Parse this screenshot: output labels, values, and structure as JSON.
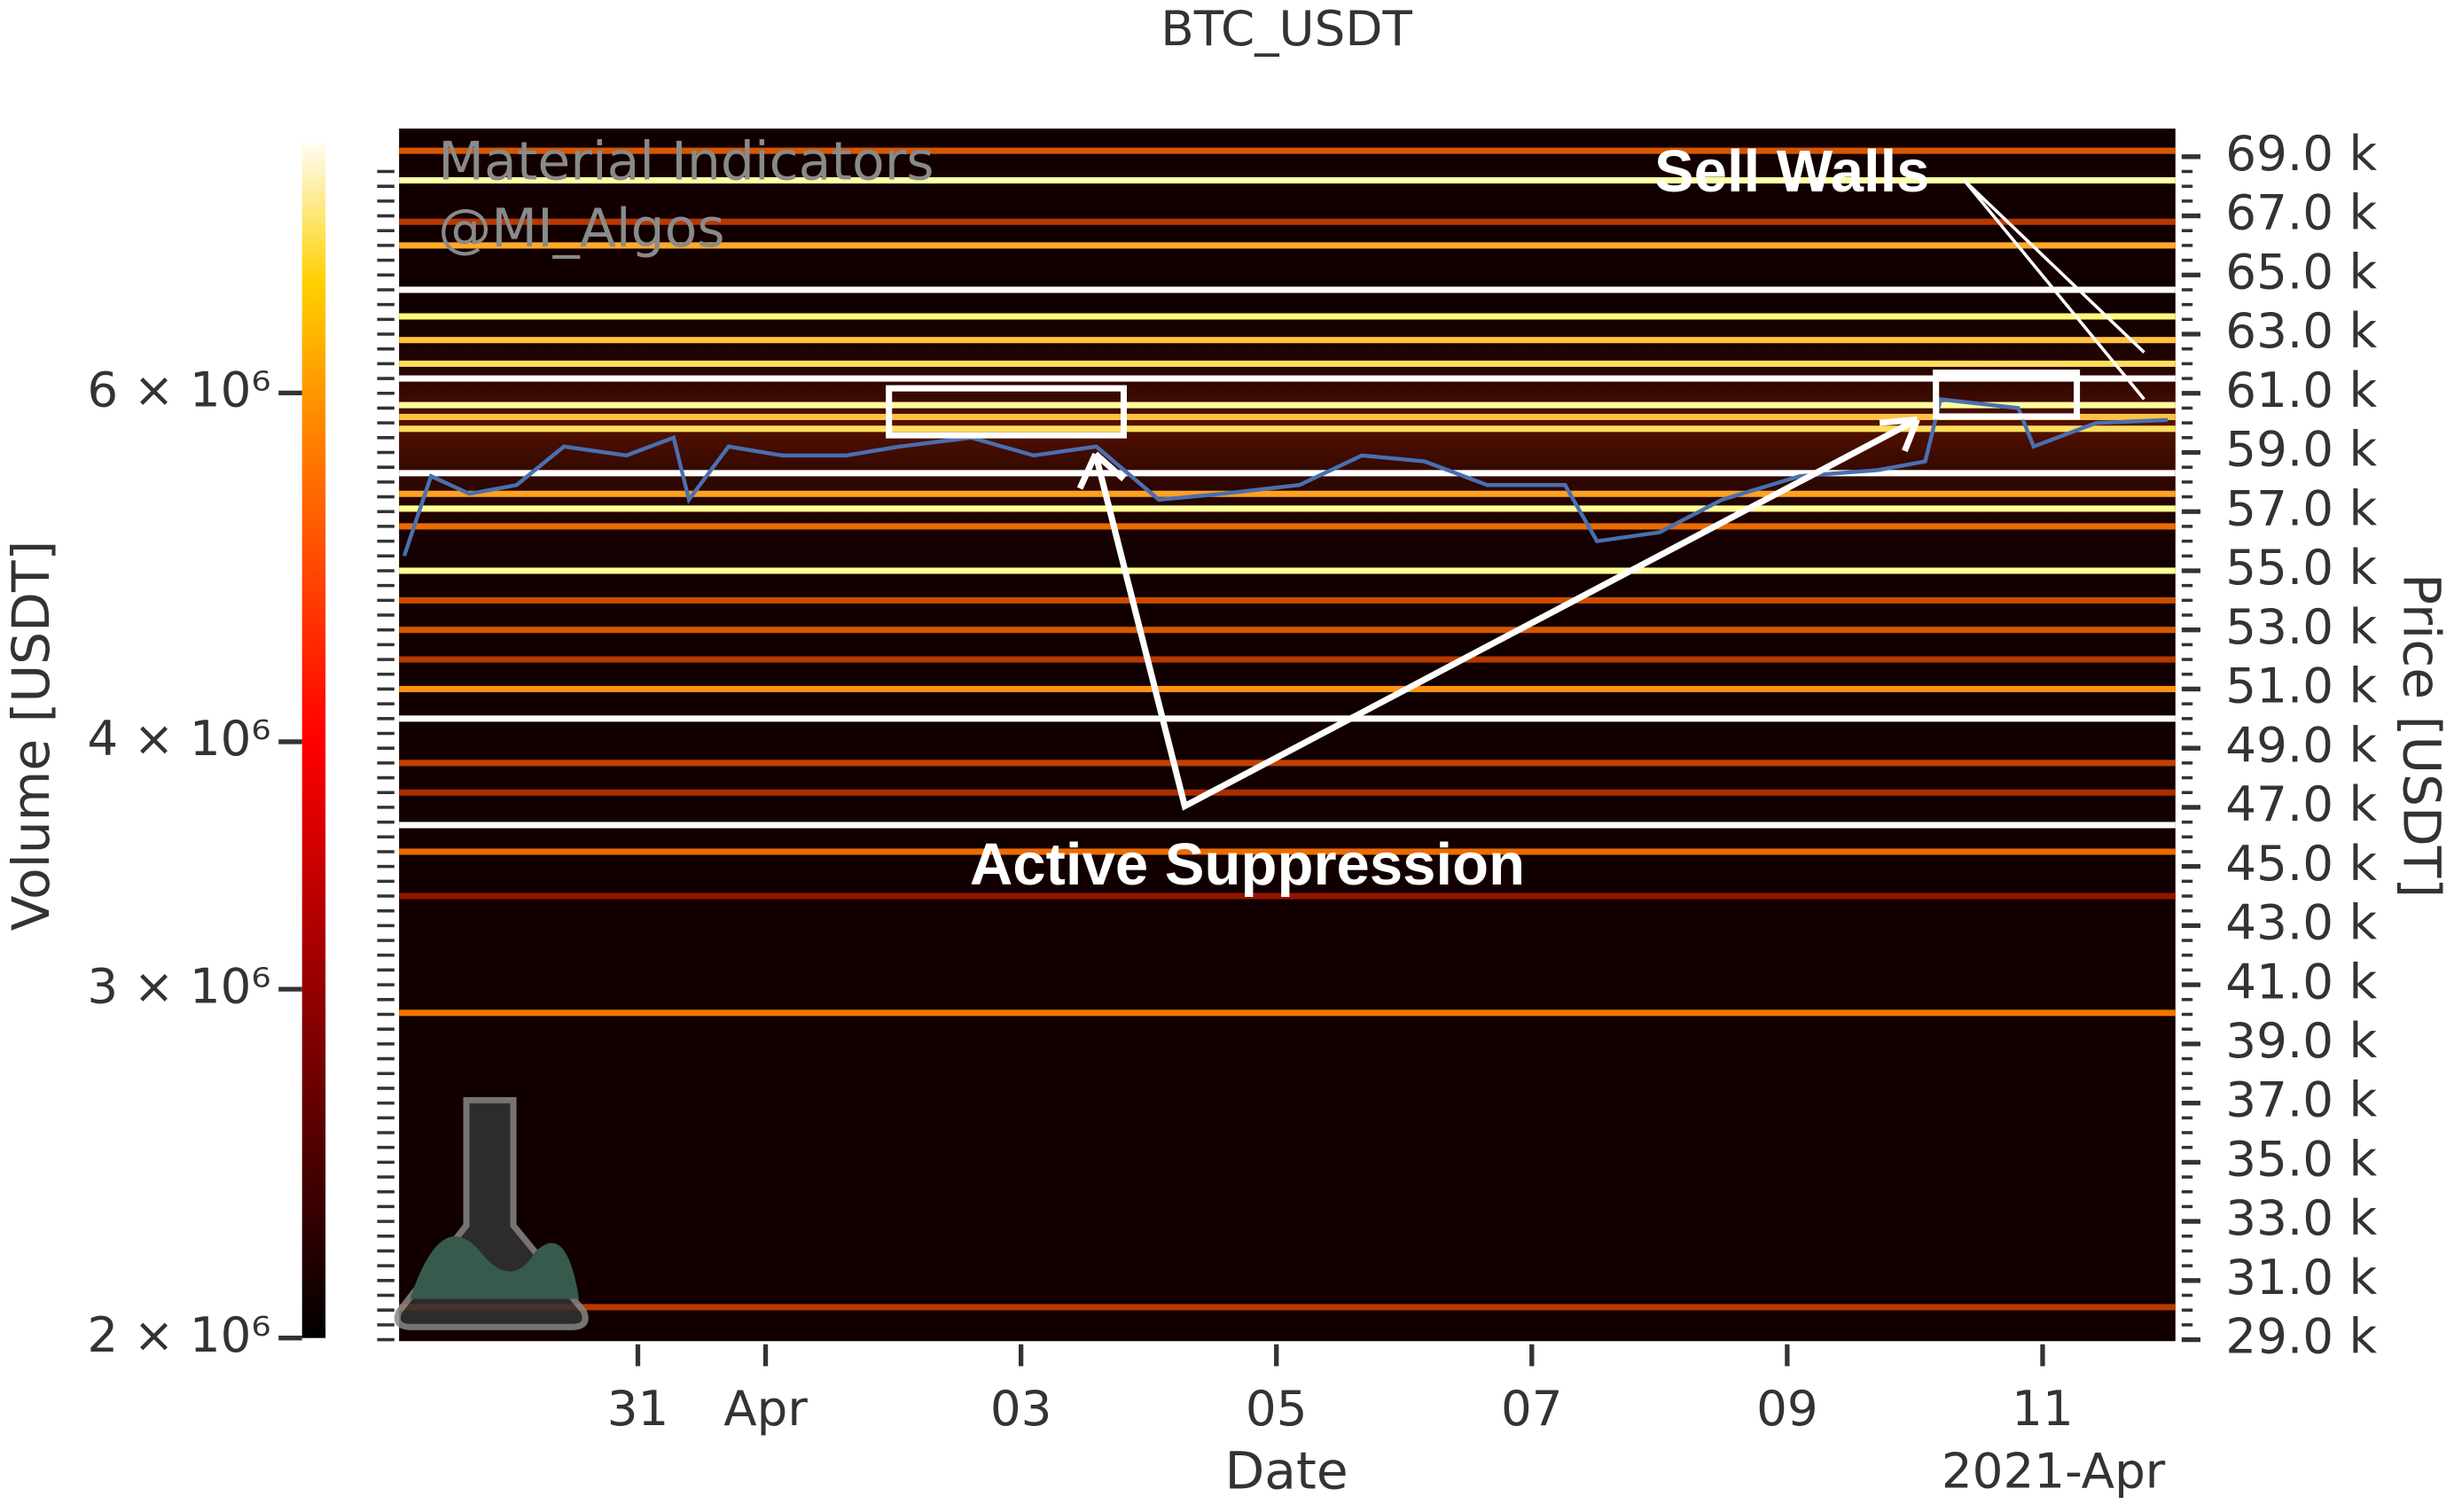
{
  "chart_data": {
    "type": "heatmap",
    "title": "BTC_USDT",
    "xlabel": "Date",
    "x_offset_label": "2021-Apr",
    "ylabel": "Price [USDT]",
    "colorbar_label": "Volume [USDT]",
    "watermark": [
      "Material Indicators",
      "@MI_Algos"
    ],
    "annotations": [
      "Active Suppression",
      "Sell Walls"
    ],
    "xlim": [
      -1.87,
      12.04
    ],
    "xticks": [
      {
        "value": 0,
        "label": "31"
      },
      {
        "value": 1,
        "label": "Apr"
      },
      {
        "value": 3,
        "label": "03"
      },
      {
        "value": 5,
        "label": "05"
      },
      {
        "value": 7,
        "label": "07"
      },
      {
        "value": 9,
        "label": "09"
      },
      {
        "value": 11,
        "label": "11"
      }
    ],
    "ylim": [
      28950,
      69950
    ],
    "yticks": [
      {
        "value": 29000,
        "label": "29.0 k"
      },
      {
        "value": 31000,
        "label": "31.0 k"
      },
      {
        "value": 33000,
        "label": "33.0 k"
      },
      {
        "value": 35000,
        "label": "35.0 k"
      },
      {
        "value": 37000,
        "label": "37.0 k"
      },
      {
        "value": 39000,
        "label": "39.0 k"
      },
      {
        "value": 41000,
        "label": "41.0 k"
      },
      {
        "value": 43000,
        "label": "43.0 k"
      },
      {
        "value": 45000,
        "label": "45.0 k"
      },
      {
        "value": 47000,
        "label": "47.0 k"
      },
      {
        "value": 49000,
        "label": "49.0 k"
      },
      {
        "value": 51000,
        "label": "51.0 k"
      },
      {
        "value": 53000,
        "label": "53.0 k"
      },
      {
        "value": 55000,
        "label": "55.0 k"
      },
      {
        "value": 57000,
        "label": "57.0 k"
      },
      {
        "value": 59000,
        "label": "59.0 k"
      },
      {
        "value": 61000,
        "label": "61.0 k"
      },
      {
        "value": 63000,
        "label": "63.0 k"
      },
      {
        "value": 65000,
        "label": "65.0 k"
      },
      {
        "value": 67000,
        "label": "67.0 k"
      },
      {
        "value": 69000,
        "label": "69.0 k"
      }
    ],
    "clim": [
      2000000,
      8070000
    ],
    "cticks": [
      {
        "value": 2000000,
        "label": "2 × 10⁶"
      },
      {
        "value": 3000000,
        "label": "3 × 10⁶"
      },
      {
        "value": 4000000,
        "label": "4 × 10⁶"
      },
      {
        "value": 6000000,
        "label": "6 × 10⁶"
      }
    ],
    "colormap": "afmhot",
    "heatmap": {
      "prices": [
        69200,
        68200,
        66800,
        66000,
        64500,
        63600,
        62800,
        62000,
        61500,
        60600,
        60200,
        59800,
        58300,
        57600,
        57100,
        56500,
        55000,
        54000,
        53000,
        52000,
        51000,
        50000,
        48500,
        47500,
        46400,
        45500,
        44000,
        40050,
        30100
      ],
      "volumes": [
        3600000,
        6300000,
        3300000,
        4500000,
        8000000,
        5600000,
        4800000,
        5200000,
        8000000,
        6200000,
        4800000,
        5200000,
        8000000,
        4400000,
        6000000,
        3800000,
        6000000,
        3500000,
        3600000,
        3300000,
        4200000,
        8000000,
        3400000,
        3200000,
        8000000,
        3800000,
        3000000,
        3900000,
        3300000
      ]
    },
    "x": [
      -1.83,
      -1.62,
      -1.32,
      -0.95,
      -0.58,
      -0.09,
      0.28,
      0.4,
      0.71,
      1.13,
      1.63,
      2.05,
      2.61,
      3.1,
      3.59,
      4.08,
      4.57,
      5.18,
      5.67,
      6.16,
      6.65,
      7.26,
      7.51,
      8.0,
      8.49,
      9.1,
      9.71,
      10.08,
      10.2,
      10.81,
      10.93,
      11.42,
      11.98
    ],
    "values": [
      55500,
      58200,
      57600,
      57900,
      59200,
      58900,
      59500,
      57400,
      59200,
      58900,
      58900,
      59200,
      59500,
      58900,
      59200,
      57400,
      57600,
      57900,
      58900,
      58700,
      57900,
      57900,
      56000,
      56300,
      57400,
      58200,
      58400,
      58700,
      60800,
      60500,
      59200,
      60000,
      60100
    ],
    "color": "#4a6fb0"
  }
}
